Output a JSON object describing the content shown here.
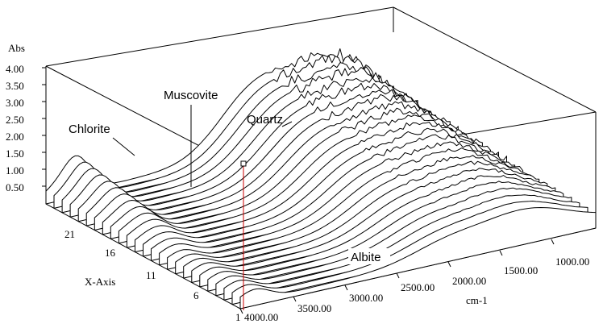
{
  "chart_data": {
    "type": "3d-waterfall",
    "z_axis": {
      "label": "Abs",
      "ticks": [
        "4.00",
        "3.50",
        "3.00",
        "2.50",
        "2.00",
        "1.50",
        "1.00",
        "0.50"
      ]
    },
    "y_axis": {
      "label": "X-Axis",
      "ticks": [
        "21",
        "16",
        "11",
        "6",
        "1"
      ]
    },
    "x_axis": {
      "label": "cm-1",
      "ticks": [
        "4000.00",
        "3500.00",
        "3000.00",
        "2500.00",
        "2000.00",
        "1500.00",
        "1000.00"
      ],
      "range": [
        4000,
        1000
      ]
    },
    "annotations": [
      "Chlorite",
      "Muscovite",
      "Quartz",
      "Albite"
    ],
    "spectra_count": 25,
    "line_color": "#000000",
    "cursor_color": "#cc0000"
  }
}
